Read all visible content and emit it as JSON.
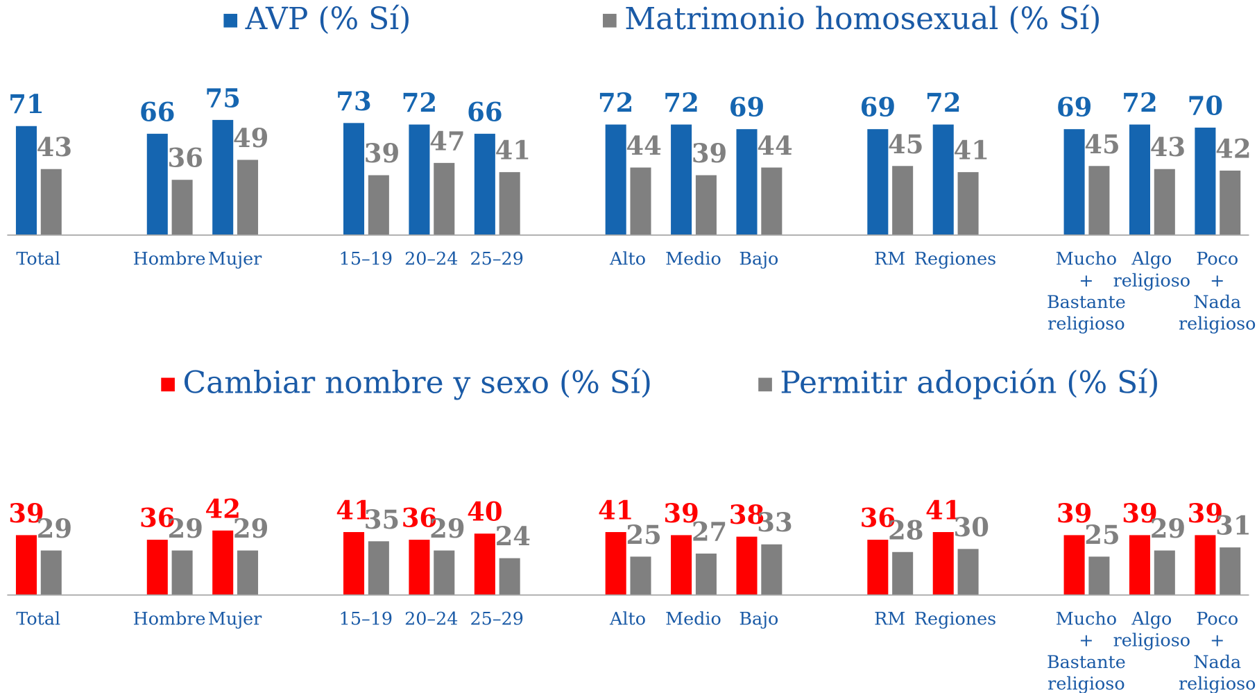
{
  "chart_data": [
    {
      "type": "bar",
      "legend": "top",
      "categories": [
        "Total",
        null,
        "Hombre",
        "Mujer",
        null,
        "15–19",
        "20–24",
        "25–29",
        null,
        "Alto",
        "Medio",
        "Bajo",
        null,
        "RM",
        "Regiones",
        null,
        "Mucho\n+\nBastante\nreligioso",
        "Algo\nreligioso",
        "Poco\n+\nNada\nreligioso"
      ],
      "ylim": [
        0,
        100
      ],
      "series": [
        {
          "name": "AVP (% Sí)",
          "color": "#1565b0",
          "values": [
            71,
            null,
            66,
            75,
            null,
            73,
            72,
            66,
            null,
            72,
            72,
            69,
            null,
            69,
            72,
            null,
            69,
            72,
            70
          ]
        },
        {
          "name": "Matrimonio homosexual (% Sí)",
          "color": "#808080",
          "values": [
            43,
            null,
            36,
            49,
            null,
            39,
            47,
            41,
            null,
            44,
            39,
            44,
            null,
            45,
            41,
            null,
            45,
            43,
            42
          ]
        }
      ]
    },
    {
      "type": "bar",
      "legend": "top",
      "categories": [
        "Total",
        null,
        "Hombre",
        "Mujer",
        null,
        "15–19",
        "20–24",
        "25–29",
        null,
        "Alto",
        "Medio",
        "Bajo",
        null,
        "RM",
        "Regiones",
        null,
        "Mucho\n+\nBastante\nreligioso",
        "Algo\nreligioso",
        "Poco\n+\nNada\nreligioso"
      ],
      "ylim": [
        0,
        100
      ],
      "series": [
        {
          "name": "Cambiar nombre y sexo (% Sí)",
          "color": "#ff0000",
          "values": [
            39,
            null,
            36,
            42,
            null,
            41,
            36,
            40,
            null,
            41,
            39,
            38,
            null,
            36,
            41,
            null,
            39,
            39,
            39
          ]
        },
        {
          "name": "Permitir adopción (% Sí)",
          "color": "#808080",
          "values": [
            29,
            null,
            29,
            29,
            null,
            35,
            29,
            24,
            null,
            25,
            27,
            33,
            null,
            28,
            30,
            null,
            25,
            29,
            31
          ]
        }
      ]
    }
  ]
}
